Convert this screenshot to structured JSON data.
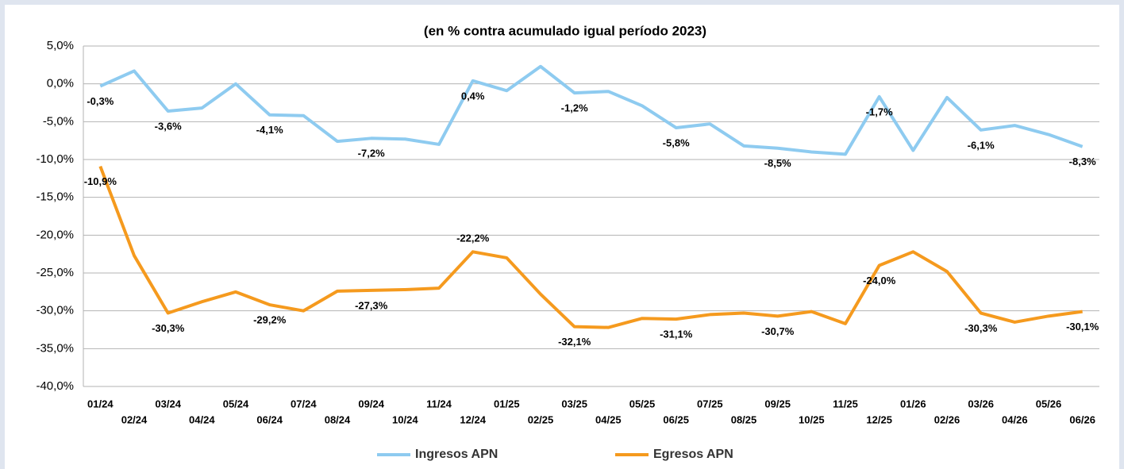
{
  "chart_data": {
    "type": "line",
    "title": "(en % contra acumulado igual período 2023)",
    "categories": [
      "01/24",
      "02/24",
      "03/24",
      "04/24",
      "05/24",
      "06/24",
      "07/24",
      "08/24",
      "09/24",
      "10/24",
      "11/24",
      "12/24",
      "01/25",
      "02/25",
      "03/25",
      "04/25",
      "05/25",
      "06/25",
      "07/25",
      "08/25",
      "09/25",
      "10/25",
      "11/25",
      "12/25",
      "01/26",
      "02/26",
      "03/26",
      "04/26",
      "05/26",
      "06/26"
    ],
    "series": [
      {
        "name": "Ingresos APN",
        "color": "#8ecbf0",
        "values": [
          -0.3,
          1.7,
          -3.6,
          -3.2,
          0.0,
          -4.1,
          -4.2,
          -7.6,
          -7.2,
          -7.3,
          -8.0,
          0.4,
          -0.9,
          2.3,
          -1.2,
          -1.0,
          -2.9,
          -5.8,
          -5.3,
          -8.2,
          -8.5,
          -9.0,
          -9.3,
          -1.7,
          -8.8,
          -1.8,
          -6.1,
          -5.5,
          -6.7,
          -8.3
        ],
        "value_labels": [
          "-0,3%",
          null,
          "-3,6%",
          null,
          null,
          "-4,1%",
          null,
          null,
          "-7,2%",
          null,
          null,
          "0,4%",
          null,
          null,
          "-1,2%",
          null,
          null,
          "-5,8%",
          null,
          null,
          "-8,5%",
          null,
          null,
          "-1,7%",
          null,
          null,
          "-6,1%",
          null,
          null,
          "-8,3%"
        ]
      },
      {
        "name": "Egresos APN",
        "color": "#f59a1e",
        "values": [
          -10.9,
          -22.7,
          -30.3,
          -28.8,
          -27.5,
          -29.2,
          -30.0,
          -27.4,
          -27.3,
          -27.2,
          -27.0,
          -22.2,
          -23.0,
          -27.8,
          -32.1,
          -32.2,
          -31.0,
          -31.1,
          -30.5,
          -30.3,
          -30.7,
          -30.1,
          -31.7,
          -24.0,
          -22.2,
          -24.8,
          -30.3,
          -31.5,
          -30.7,
          -30.1
        ],
        "value_labels": [
          "-10,9%",
          null,
          "-30,3%",
          null,
          null,
          "-29,2%",
          null,
          null,
          "-27,3%",
          null,
          null,
          "-22,2%",
          null,
          null,
          "-32,1%",
          null,
          null,
          "-31,1%",
          null,
          null,
          "-30,7%",
          null,
          null,
          "-24,0%",
          null,
          null,
          "-30,3%",
          null,
          null,
          "-30,1%"
        ]
      }
    ],
    "ylim": [
      -40,
      5
    ],
    "yticks": [
      {
        "value": -40,
        "label": "-40,0%"
      },
      {
        "value": -35,
        "label": "-35,0%"
      },
      {
        "value": -30,
        "label": "-30,0%"
      },
      {
        "value": -25,
        "label": "-25,0%"
      },
      {
        "value": -20,
        "label": "-20,0%"
      },
      {
        "value": -15,
        "label": "-15,0%"
      },
      {
        "value": -10,
        "label": "-10,0%"
      },
      {
        "value": -5,
        "label": "-5,0%"
      },
      {
        "value": 0,
        "label": "0,0%"
      },
      {
        "value": 5,
        "label": "5,0%"
      }
    ],
    "grid": true,
    "legend": "bottom"
  }
}
